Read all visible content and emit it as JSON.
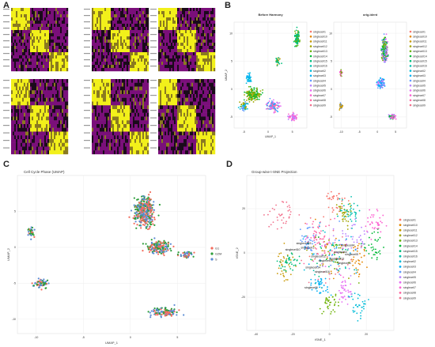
{
  "panels": {
    "A": {
      "letter": "A"
    },
    "B": {
      "letter": "B"
    },
    "C": {
      "letter": "C"
    },
    "D": {
      "letter": "D"
    }
  },
  "colors": {
    "heat_low": "#7a0f7a",
    "heat_mid": "#1a0a1a",
    "heat_high": "#f2f01a",
    "cc_G1": "#f36b5c",
    "cc_G2M": "#2e9e3b",
    "cc_S": "#5b8bd4"
  },
  "chart_data": [
    {
      "type": "heatmap",
      "panel": "A",
      "blocks": 6,
      "palette": [
        "#7a0f7a",
        "#1a0a1a",
        "#f2f01a"
      ]
    },
    {
      "type": "scatter",
      "panel": "B-left",
      "title": "Before Harmony",
      "xlabel": "UMAP_1",
      "ylabel": "UMAP_2",
      "xticks": [
        "-5",
        "0",
        "5"
      ],
      "yticks": [
        "10",
        "5",
        "0",
        "-5"
      ],
      "xlim": [
        -7,
        8
      ],
      "ylim": [
        -7,
        12
      ],
      "legend": [
        "singlecell1",
        "singlecell10",
        "singlecell11",
        "singlecell12",
        "singlecell13",
        "singlecell14",
        "singlecell15",
        "singlecell16",
        "singlecell2",
        "singlecell3",
        "singlecell4",
        "singlecell5",
        "singlecell6",
        "singlecell7",
        "singlecell8",
        "singlecell9"
      ],
      "legend_colors": [
        "#f8766d",
        "#e58700",
        "#c99800",
        "#a3a500",
        "#6bb100",
        "#00ba38",
        "#00bf7d",
        "#00c0af",
        "#00bcd8",
        "#00b0f6",
        "#619cff",
        "#b983ff",
        "#e76bf3",
        "#fd61d1",
        "#ff67a4",
        "#f2718c"
      ]
    },
    {
      "type": "scatter",
      "panel": "B-right",
      "title": "orig.ident",
      "xticks": [
        "-10",
        "-5",
        "0",
        "5"
      ],
      "yticks": [
        "10",
        "5",
        "0",
        "-5"
      ],
      "xlim": [
        -12,
        8
      ],
      "ylim": [
        -7,
        12
      ],
      "legend": [
        "singlecell1",
        "singlecell10",
        "singlecell11",
        "singlecell12",
        "singlecell13",
        "singlecell14",
        "singlecell15",
        "singlecell16",
        "singlecell2",
        "singlecell3",
        "singlecell4",
        "singlecell5",
        "singlecell6",
        "singlecell7",
        "singlecell8",
        "singlecell9"
      ]
    },
    {
      "type": "scatter",
      "panel": "C",
      "title": "Cell Cycle Phase (UMAP)",
      "xlabel": "UMAP_1",
      "ylabel": "UMAP_2",
      "xticks": [
        "-10",
        "-5",
        "0",
        "5"
      ],
      "yticks": [
        "5",
        "0",
        "-5",
        "-10"
      ],
      "xlim": [
        -12,
        8
      ],
      "ylim": [
        -12,
        10
      ],
      "legend": [
        "G1",
        "G2M",
        "S"
      ],
      "legend_colors": [
        "#f36b5c",
        "#2e9e3b",
        "#5b8bd4"
      ]
    },
    {
      "type": "scatter",
      "panel": "D",
      "title": "Group-wise t-SNE Projection",
      "xlabel": "tSNE_1",
      "ylabel": "tSNE_2",
      "xticks": [
        "-40",
        "-20",
        "0",
        "20"
      ],
      "yticks": [
        "20",
        "0",
        "-20"
      ],
      "xlim": [
        -45,
        35
      ],
      "ylim": [
        -35,
        35
      ],
      "legend": [
        "singlecell1",
        "singlecell10",
        "singlecell11",
        "singlecell12",
        "singlecell13",
        "singlecell14",
        "singlecell15",
        "singlecell16",
        "singlecell2",
        "singlecell3",
        "singlecell4",
        "singlecell5",
        "singlecell6",
        "singlecell7",
        "singlecell8",
        "singlecell9"
      ],
      "cluster_labels": [
        {
          "text": "singlecell1",
          "x": -12,
          "y": 2
        },
        {
          "text": "singlecell10",
          "x": -20,
          "y": 1
        },
        {
          "text": "singlecell11",
          "x": -2,
          "y": -4
        },
        {
          "text": "singlecell12",
          "x": -6,
          "y": -2
        },
        {
          "text": "singlecell13",
          "x": 4,
          "y": -3
        },
        {
          "text": "singlecell14",
          "x": -9,
          "y": -7
        },
        {
          "text": "singlecell15",
          "x": -14,
          "y": 4
        },
        {
          "text": "singlecell16",
          "x": -4,
          "y": -9
        },
        {
          "text": "singlecell2",
          "x": 6,
          "y": 0
        },
        {
          "text": "singlecell3",
          "x": 8,
          "y": -5
        },
        {
          "text": "singlecell4",
          "x": 10,
          "y": 3
        },
        {
          "text": "singlecell5",
          "x": 12,
          "y": -1
        },
        {
          "text": "singlecell6",
          "x": -10,
          "y": -16
        }
      ]
    }
  ]
}
